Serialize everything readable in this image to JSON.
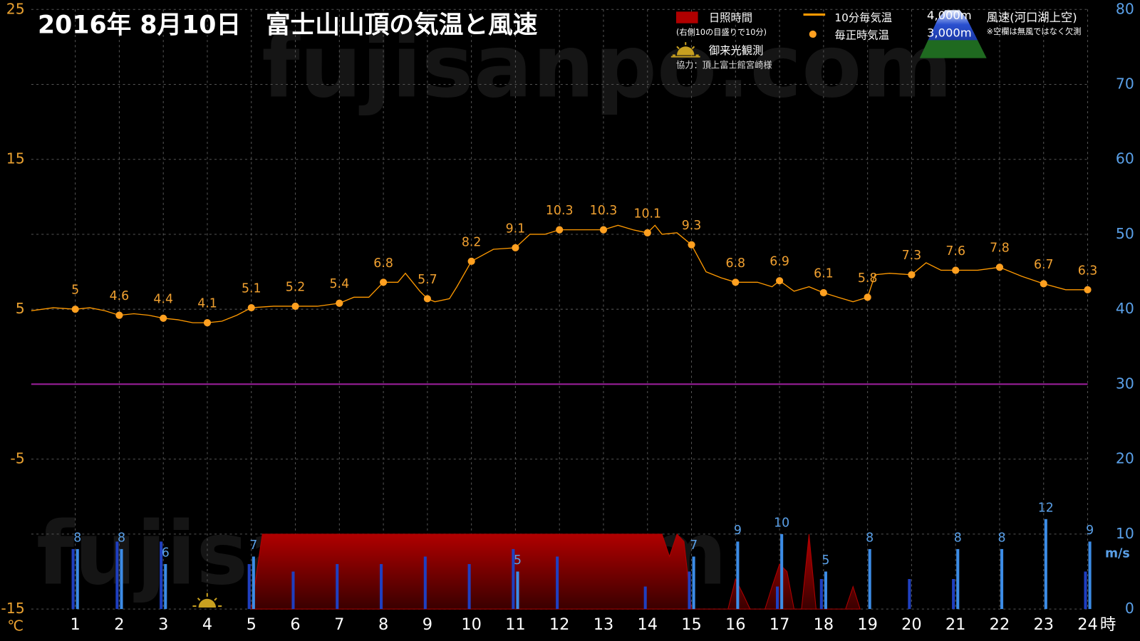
{
  "chart_data": {
    "type": "combo",
    "title": "2016年 8月10日　富士山山頂の気温と風速",
    "watermark": "fujisanpo.com",
    "x_unit": "時",
    "y_unit": "℃",
    "y2_unit": "m/s",
    "xlim": [
      0,
      24
    ],
    "xticks": [
      1,
      2,
      3,
      4,
      5,
      6,
      7,
      8,
      9,
      10,
      11,
      12,
      13,
      14,
      15,
      16,
      17,
      18,
      19,
      20,
      21,
      22,
      23,
      24
    ],
    "ylim": [
      -15,
      25
    ],
    "yticks": [
      -15,
      -5,
      5,
      15,
      25
    ],
    "y2lim": [
      0,
      80
    ],
    "y2ticks": [
      0,
      10,
      20,
      30,
      40,
      50,
      60,
      70,
      80
    ],
    "grid": true,
    "reference_line": {
      "value": 0,
      "color": "#a020a0"
    },
    "sunshine_note": "(右側10の目盛りで10分)",
    "sunrise_label": "御来光観測",
    "credit": "協力：頂上富士館宮崎様",
    "wind_title": "風速(河口湖上空)",
    "wind_note": "※空欄は無風ではなく欠測",
    "series": [
      {
        "name": "日照時間",
        "type": "area",
        "axis": "y2",
        "color": "#b00000",
        "x": [
          5.0,
          5.25,
          5.33,
          14.17,
          14.33,
          14.5,
          14.67,
          14.83,
          15.0,
          15.83,
          16.0,
          16.17,
          16.33,
          16.67,
          16.83,
          17.0,
          17.17,
          17.33,
          17.5,
          17.67,
          17.83,
          18.5,
          18.67,
          18.83
        ],
        "values": [
          0,
          10,
          10,
          10,
          10,
          7,
          10,
          9,
          0,
          0,
          4,
          2,
          0,
          0,
          3,
          6,
          5,
          0,
          0,
          10,
          0,
          0,
          3,
          0
        ]
      },
      {
        "name": "10分毎気温",
        "type": "line",
        "color": "#ff9900",
        "x": [
          0,
          0.5,
          1,
          1.33,
          1.67,
          2,
          2.33,
          2.67,
          3,
          3.33,
          3.67,
          4,
          4.33,
          4.67,
          5,
          5.5,
          6,
          6.5,
          7,
          7.33,
          7.67,
          8,
          8.33,
          8.5,
          8.83,
          9,
          9.17,
          9.5,
          9.67,
          10,
          10.5,
          11,
          11.33,
          11.67,
          12,
          12.5,
          13,
          13.33,
          13.67,
          14,
          14.17,
          14.33,
          14.67,
          15,
          15.33,
          15.67,
          16,
          16.5,
          16.83,
          17,
          17.33,
          17.67,
          18,
          18.33,
          18.67,
          19,
          19.17,
          19.5,
          20,
          20.33,
          20.67,
          21,
          21.5,
          22,
          22.5,
          23,
          23.5,
          24
        ],
        "values": [
          4.9,
          5.1,
          5.0,
          5.1,
          4.9,
          4.6,
          4.7,
          4.6,
          4.4,
          4.3,
          4.1,
          4.1,
          4.2,
          4.6,
          5.1,
          5.2,
          5.2,
          5.2,
          5.4,
          5.8,
          5.8,
          6.8,
          6.8,
          7.4,
          6.2,
          5.7,
          5.5,
          5.7,
          6.5,
          8.2,
          9.0,
          9.1,
          10.0,
          10.0,
          10.3,
          10.3,
          10.3,
          10.6,
          10.3,
          10.1,
          10.6,
          10.0,
          10.1,
          9.3,
          7.5,
          7.1,
          6.8,
          6.8,
          6.5,
          6.9,
          6.2,
          6.5,
          6.1,
          5.8,
          5.5,
          5.8,
          7.3,
          7.4,
          7.3,
          8.1,
          7.6,
          7.6,
          7.6,
          7.8,
          7.2,
          6.7,
          6.3,
          6.3
        ]
      },
      {
        "name": "毎正時気温",
        "type": "scatter",
        "color": "#ffa020",
        "values": [
          5,
          4.6,
          4.4,
          4.1,
          5.1,
          5.2,
          5.4,
          6.8,
          5.7,
          8.2,
          9.1,
          10.3,
          10.3,
          10.1,
          9.3,
          6.8,
          6.9,
          6.1,
          5.8,
          7.3,
          7.6,
          7.8,
          6.7,
          6.3
        ]
      },
      {
        "name": "4,000m",
        "type": "bar",
        "axis": "y2",
        "color": "#1f3fc0",
        "values": [
          8,
          9,
          9,
          null,
          6,
          5,
          6,
          6,
          7,
          6,
          8,
          7,
          null,
          3,
          5,
          null,
          3,
          4,
          null,
          4,
          4,
          null,
          null,
          5
        ]
      },
      {
        "name": "3,000m",
        "type": "bar",
        "axis": "y2",
        "color": "#3c8ce6",
        "values": [
          8,
          8,
          6,
          null,
          7,
          null,
          null,
          null,
          null,
          null,
          5,
          null,
          null,
          null,
          7,
          9,
          10,
          5,
          8,
          null,
          8,
          8,
          12,
          9
        ]
      }
    ]
  }
}
